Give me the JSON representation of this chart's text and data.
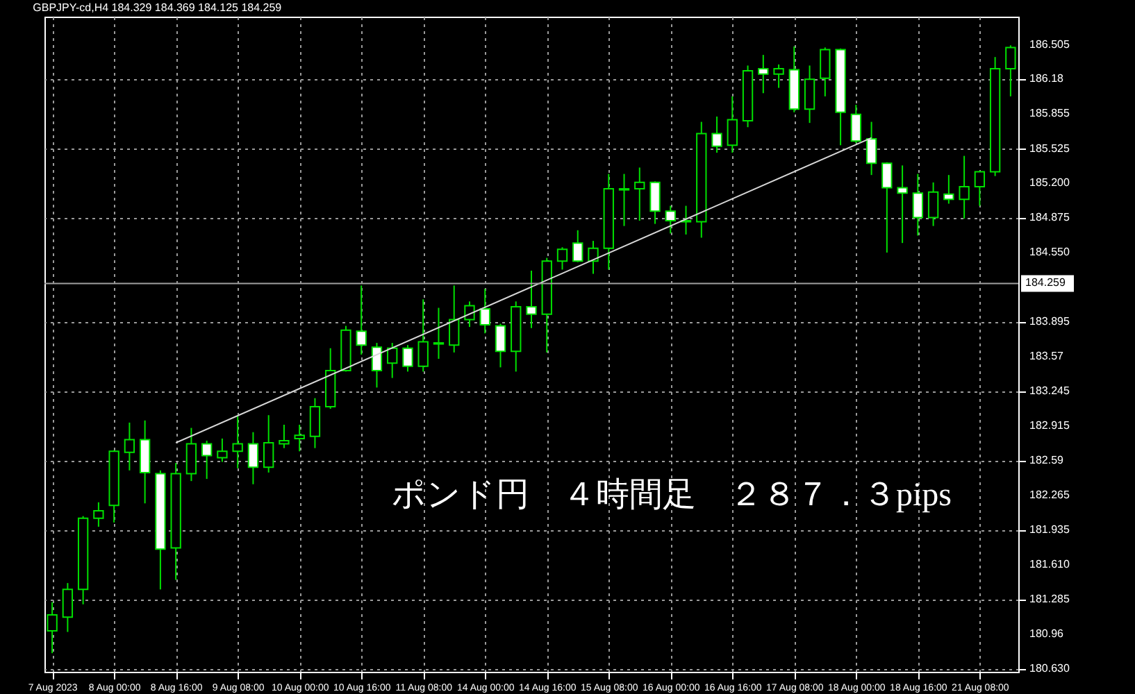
{
  "chart_data": {
    "type": "candlestick",
    "title": "GBPJPY-cd,H4  184.329 184.369 184.125 184.259",
    "annotations": [
      "ポンド円　４時間足　２８７．３pips"
    ],
    "categories": [
      "7 Aug 2023",
      null,
      null,
      null,
      "8 Aug 00:00",
      null,
      null,
      null,
      "8 Aug 16:00",
      null,
      null,
      null,
      "9 Aug 08:00",
      null,
      null,
      null,
      "10 Aug 00:00",
      null,
      null,
      null,
      "10 Aug 16:00",
      null,
      null,
      null,
      "11 Aug 08:00",
      null,
      null,
      null,
      "14 Aug 00:00",
      null,
      null,
      null,
      "14 Aug 16:00",
      null,
      null,
      null,
      "15 Aug 08:00",
      null,
      null,
      null,
      "16 Aug 00:00",
      null,
      null,
      null,
      "16 Aug 16:00",
      null,
      null,
      null,
      "17 Aug 08:00",
      null,
      null,
      null,
      "18 Aug 00:00",
      null,
      null,
      null,
      "18 Aug 16:00",
      null,
      null,
      null,
      "21 Aug 08:00",
      null,
      null
    ],
    "series": [
      {
        "color": "#00e000",
        "ohlc": [
          [
            180.99,
            181.26,
            180.78,
            181.14
          ],
          [
            181.12,
            181.44,
            180.98,
            181.38
          ],
          [
            181.38,
            182.07,
            181.24,
            182.05
          ],
          [
            182.05,
            182.2,
            181.97,
            182.12
          ],
          [
            182.17,
            182.69,
            182.01,
            182.68
          ],
          [
            182.67,
            182.95,
            182.5,
            182.79
          ],
          [
            182.79,
            182.97,
            182.19,
            182.48
          ],
          [
            182.47,
            182.5,
            181.38,
            181.76
          ],
          [
            181.77,
            182.57,
            181.47,
            182.47
          ],
          [
            182.47,
            182.9,
            182.4,
            182.75
          ],
          [
            182.75,
            182.78,
            182.42,
            182.64
          ],
          [
            182.62,
            182.8,
            182.58,
            182.68
          ],
          [
            182.68,
            183.02,
            182.52,
            182.75
          ],
          [
            182.75,
            182.86,
            182.37,
            182.53
          ],
          [
            182.53,
            183.02,
            182.48,
            182.76
          ],
          [
            182.75,
            182.93,
            182.71,
            182.78
          ],
          [
            182.8,
            182.93,
            182.68,
            182.83
          ],
          [
            182.82,
            183.18,
            182.71,
            183.1
          ],
          [
            183.1,
            183.65,
            183.08,
            183.44
          ],
          [
            183.44,
            183.86,
            183.43,
            183.82
          ],
          [
            183.81,
            184.24,
            183.59,
            183.68
          ],
          [
            183.66,
            183.7,
            183.28,
            183.44
          ],
          [
            183.51,
            183.7,
            183.37,
            183.65
          ],
          [
            183.65,
            183.68,
            183.43,
            183.48
          ],
          [
            183.48,
            184.11,
            183.43,
            183.71
          ],
          [
            183.69,
            184.03,
            183.55,
            183.7
          ],
          [
            183.68,
            184.24,
            183.61,
            183.92
          ],
          [
            183.92,
            184.09,
            183.85,
            184.05
          ],
          [
            184.02,
            184.21,
            183.79,
            183.87
          ],
          [
            183.86,
            183.88,
            183.47,
            183.62
          ],
          [
            183.62,
            184.09,
            183.43,
            184.04
          ],
          [
            184.04,
            184.38,
            183.84,
            183.97
          ],
          [
            183.97,
            184.5,
            183.61,
            184.47
          ],
          [
            184.47,
            184.6,
            184.39,
            184.58
          ],
          [
            184.64,
            184.76,
            184.46,
            184.47
          ],
          [
            184.47,
            184.66,
            184.35,
            184.59
          ],
          [
            184.59,
            185.29,
            184.39,
            185.15
          ],
          [
            185.14,
            185.29,
            184.8,
            185.15
          ],
          [
            185.15,
            185.35,
            184.85,
            185.21
          ],
          [
            185.21,
            185.22,
            184.82,
            184.94
          ],
          [
            184.94,
            184.99,
            184.73,
            184.85
          ],
          [
            184.84,
            184.99,
            184.72,
            184.85
          ],
          [
            184.84,
            185.78,
            184.69,
            185.67
          ],
          [
            185.67,
            185.83,
            185.49,
            185.55
          ],
          [
            185.56,
            186.02,
            185.49,
            185.8
          ],
          [
            185.79,
            186.31,
            185.73,
            186.26
          ],
          [
            186.28,
            186.41,
            186.05,
            186.23
          ],
          [
            186.23,
            186.32,
            186.1,
            186.28
          ],
          [
            186.27,
            186.49,
            185.87,
            185.9
          ],
          [
            185.9,
            186.31,
            185.77,
            186.18
          ],
          [
            186.19,
            186.48,
            186.02,
            186.46
          ],
          [
            186.46,
            186.47,
            185.56,
            185.87
          ],
          [
            185.85,
            185.94,
            185.58,
            185.6
          ],
          [
            185.62,
            185.78,
            185.28,
            185.39
          ],
          [
            185.39,
            185.4,
            184.55,
            185.16
          ],
          [
            185.16,
            185.37,
            184.64,
            185.11
          ],
          [
            185.11,
            185.29,
            184.71,
            184.88
          ],
          [
            184.88,
            185.21,
            184.8,
            185.12
          ],
          [
            185.1,
            185.28,
            185.01,
            185.05
          ],
          [
            185.05,
            185.46,
            184.87,
            185.17
          ],
          [
            185.17,
            185.32,
            184.99,
            185.31
          ],
          [
            185.31,
            186.39,
            185.27,
            186.28
          ],
          [
            186.28,
            186.5,
            186.02,
            186.48
          ]
        ]
      },
      {
        "type": "line",
        "color": "#d8d8d8",
        "values": [
          null,
          null,
          null,
          null,
          null,
          null,
          null,
          null,
          182.76,
          null,
          null,
          null,
          null,
          null,
          null,
          null,
          null,
          null,
          null,
          null,
          null,
          null,
          null,
          null,
          null,
          null,
          null,
          null,
          null,
          null,
          null,
          null,
          null,
          null,
          null,
          null,
          null,
          null,
          null,
          null,
          null,
          null,
          null,
          null,
          null,
          null,
          null,
          null,
          null,
          null,
          null,
          null,
          null,
          185.63,
          null,
          null,
          null,
          null,
          null,
          null,
          null,
          null,
          null
        ]
      }
    ],
    "ylim": [
      180.605,
      186.77
    ],
    "yticks": [
      {
        "value": 180.63,
        "label": "180.630"
      },
      180.96,
      181.285,
      {
        "value": 181.61,
        "label": "181.610"
      },
      181.935,
      182.265,
      182.59,
      182.915,
      183.245,
      183.57,
      183.895,
      {
        "value": 184.55,
        "label": "184.550"
      },
      184.875,
      {
        "value": 185.2,
        "label": "185.200"
      },
      185.525,
      185.855,
      186.18,
      186.505
    ],
    "ref_lines": [
      {
        "axis": "y",
        "value": 184.259,
        "label": "184.259",
        "color": "#a0a0a0"
      }
    ],
    "grid": true
  }
}
